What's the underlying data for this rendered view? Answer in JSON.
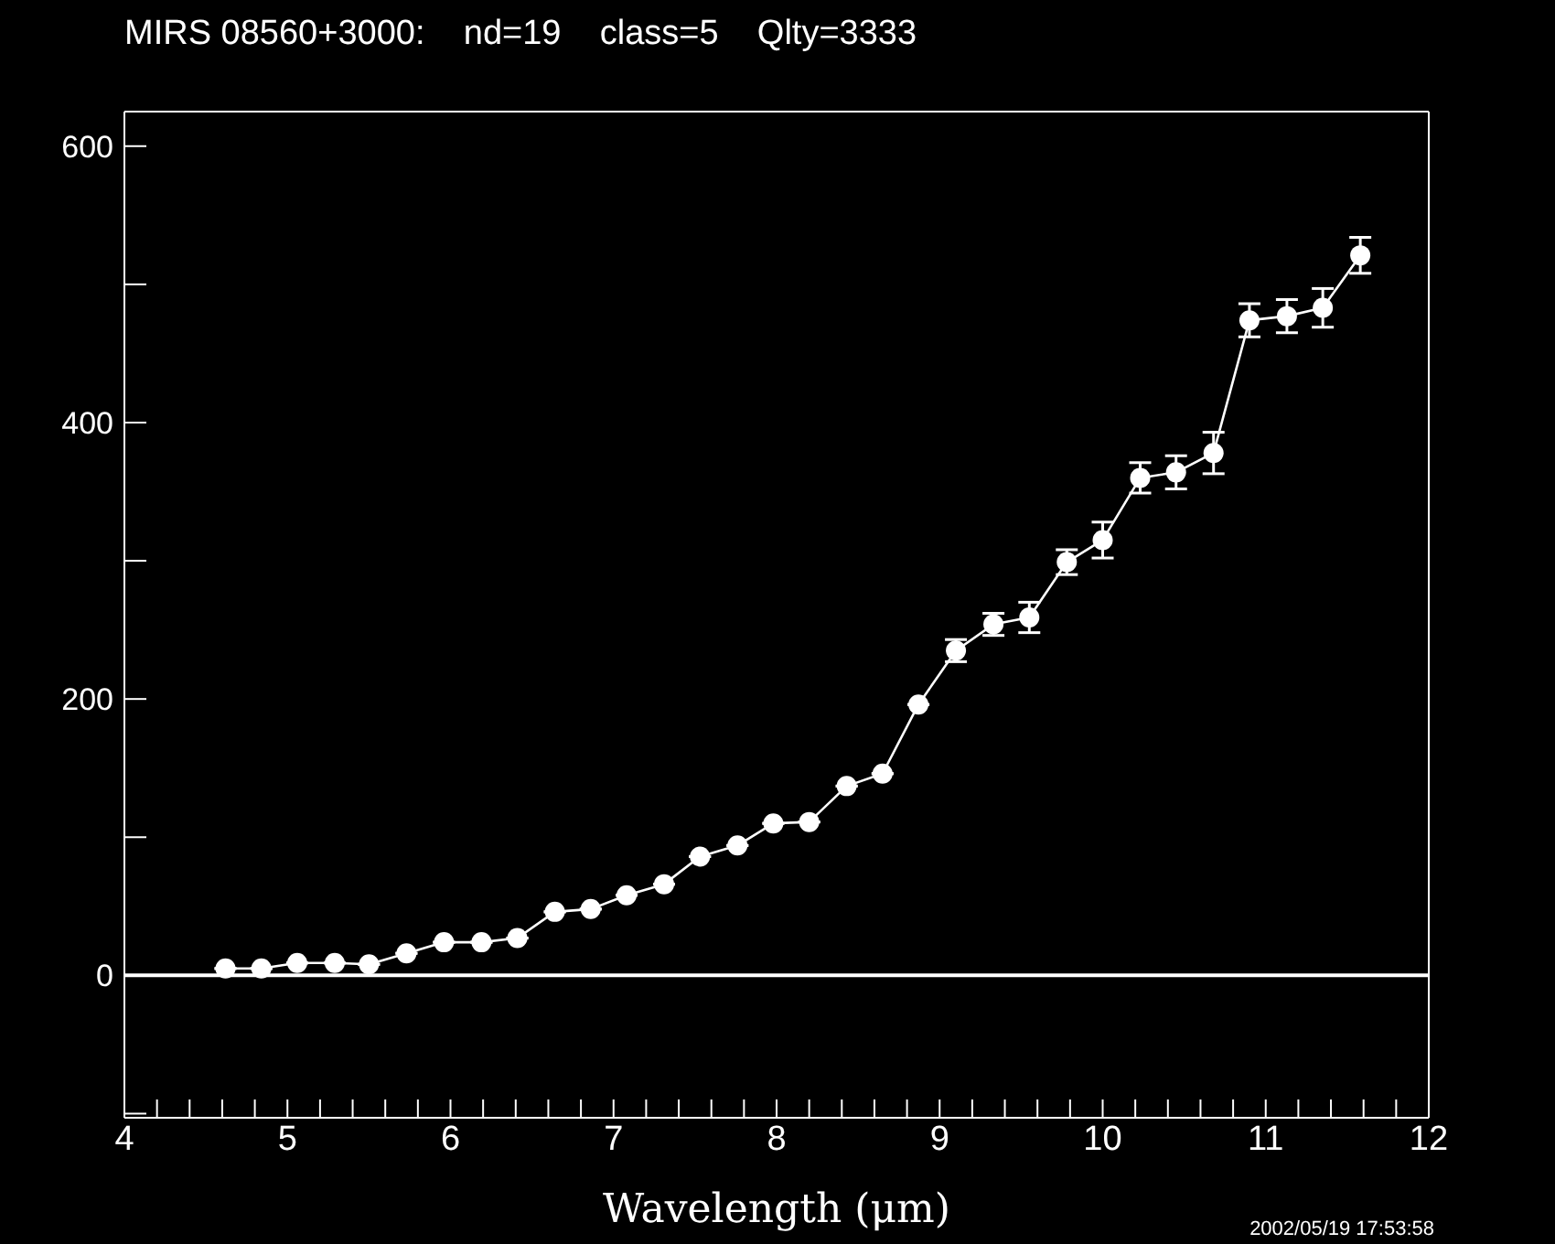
{
  "chart_data": {
    "type": "line",
    "title": "MIRS 08560+3000:    nd=19    class=5    Qlty=3333",
    "xlabel": "Wavelength (μm)",
    "annotations": [
      "2002/05/19 17:53:58"
    ],
    "x": [
      4.62,
      4.84,
      5.06,
      5.29,
      5.5,
      5.73,
      5.96,
      6.19,
      6.41,
      6.64,
      6.86,
      7.08,
      7.31,
      7.53,
      7.76,
      7.98,
      8.2,
      8.43,
      8.65,
      8.87,
      9.1,
      9.33,
      9.55,
      9.78,
      10.0,
      10.23,
      10.45,
      10.68,
      10.9,
      11.13,
      11.35,
      11.58
    ],
    "series": [
      {
        "color": "#ffffff",
        "values": [
          5,
          5,
          9,
          9,
          8,
          16,
          24,
          24,
          27,
          46,
          48,
          58,
          66,
          86,
          94,
          110,
          111,
          137,
          146,
          196,
          235,
          254,
          259,
          299,
          315,
          360,
          364,
          378,
          474,
          477,
          483,
          521
        ],
        "errors": [
          null,
          null,
          null,
          null,
          null,
          null,
          null,
          null,
          null,
          null,
          null,
          null,
          null,
          null,
          null,
          null,
          null,
          null,
          null,
          null,
          8,
          8,
          11,
          9,
          13,
          11,
          12,
          15,
          12,
          12,
          14,
          13
        ]
      }
    ],
    "marker": "circle",
    "line_style": "solid",
    "xlim": [
      4,
      12
    ],
    "xticks": [
      4,
      {
        "value": 4.2,
        "label": null
      },
      {
        "value": 4.4,
        "label": null
      },
      {
        "value": 4.6,
        "label": null
      },
      {
        "value": 4.8,
        "label": null
      },
      5,
      {
        "value": 5.2,
        "label": null
      },
      {
        "value": 5.4,
        "label": null
      },
      {
        "value": 5.6,
        "label": null
      },
      {
        "value": 5.8,
        "label": null
      },
      6,
      {
        "value": 6.2,
        "label": null
      },
      {
        "value": 6.4,
        "label": null
      },
      {
        "value": 6.6,
        "label": null
      },
      {
        "value": 6.8,
        "label": null
      },
      7,
      {
        "value": 7.2,
        "label": null
      },
      {
        "value": 7.4,
        "label": null
      },
      {
        "value": 7.6,
        "label": null
      },
      {
        "value": 7.8,
        "label": null
      },
      8,
      {
        "value": 8.2,
        "label": null
      },
      {
        "value": 8.4,
        "label": null
      },
      {
        "value": 8.6,
        "label": null
      },
      {
        "value": 8.8,
        "label": null
      },
      9,
      {
        "value": 9.2,
        "label": null
      },
      {
        "value": 9.4,
        "label": null
      },
      {
        "value": 9.6,
        "label": null
      },
      {
        "value": 9.8,
        "label": null
      },
      10,
      {
        "value": 10.2,
        "label": null
      },
      {
        "value": 10.4,
        "label": null
      },
      {
        "value": 10.6,
        "label": null
      },
      {
        "value": 10.8,
        "label": null
      },
      11,
      {
        "value": 11.2,
        "label": null
      },
      {
        "value": 11.4,
        "label": null
      },
      {
        "value": 11.6,
        "label": null
      },
      {
        "value": 11.8,
        "label": null
      },
      12
    ],
    "ylim": [
      -103,
      625
    ],
    "yticks": [
      {
        "value": -100,
        "label": null
      },
      0,
      {
        "value": 100,
        "label": null
      },
      200,
      {
        "value": 300,
        "label": null
      },
      400,
      {
        "value": 500,
        "label": null
      },
      600
    ],
    "ref_lines": [
      {
        "axis": "y",
        "value": 0,
        "color": "#ffffff"
      }
    ]
  }
}
